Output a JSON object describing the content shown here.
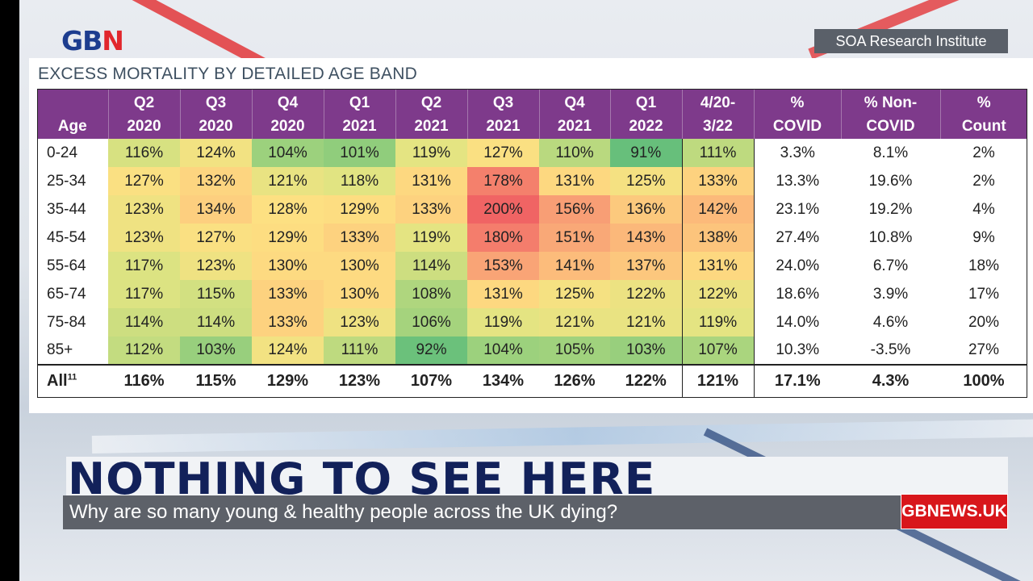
{
  "brand": {
    "logo_main": "GB",
    "logo_accent": "N",
    "colors": {
      "navy": "#1d3d8f",
      "red": "#e1262c",
      "purple": "#7e3a8b"
    }
  },
  "source": "SOA Research Institute",
  "table": {
    "title": "EXCESS MORTALITY BY DETAILED AGE BAND",
    "headers": [
      [
        "",
        "Age"
      ],
      [
        "Q2",
        "2020"
      ],
      [
        "Q3",
        "2020"
      ],
      [
        "Q4",
        "2020"
      ],
      [
        "Q1",
        "2021"
      ],
      [
        "Q2",
        "2021"
      ],
      [
        "Q3",
        "2021"
      ],
      [
        "Q4",
        "2021"
      ],
      [
        "Q1",
        "2022"
      ],
      [
        "4/20-",
        "3/22"
      ],
      [
        "%",
        "COVID"
      ],
      [
        "% Non-",
        "COVID"
      ],
      [
        "%",
        "Count"
      ]
    ],
    "rows": [
      {
        "age": "0-24",
        "q": [
          "116%",
          "124%",
          "104%",
          "101%",
          "119%",
          "127%",
          "110%",
          "91%"
        ],
        "total": "111%",
        "covid": "3.3%",
        "noncovid": "8.1%",
        "count": "2%"
      },
      {
        "age": "25-34",
        "q": [
          "127%",
          "132%",
          "121%",
          "118%",
          "131%",
          "178%",
          "131%",
          "125%"
        ],
        "total": "133%",
        "covid": "13.3%",
        "noncovid": "19.6%",
        "count": "2%"
      },
      {
        "age": "35-44",
        "q": [
          "123%",
          "134%",
          "128%",
          "129%",
          "133%",
          "200%",
          "156%",
          "136%"
        ],
        "total": "142%",
        "covid": "23.1%",
        "noncovid": "19.2%",
        "count": "4%"
      },
      {
        "age": "45-54",
        "q": [
          "123%",
          "127%",
          "129%",
          "133%",
          "119%",
          "180%",
          "151%",
          "143%"
        ],
        "total": "138%",
        "covid": "27.4%",
        "noncovid": "10.8%",
        "count": "9%"
      },
      {
        "age": "55-64",
        "q": [
          "117%",
          "123%",
          "130%",
          "130%",
          "114%",
          "153%",
          "141%",
          "137%"
        ],
        "total": "131%",
        "covid": "24.0%",
        "noncovid": "6.7%",
        "count": "18%"
      },
      {
        "age": "65-74",
        "q": [
          "117%",
          "115%",
          "133%",
          "130%",
          "108%",
          "131%",
          "125%",
          "122%"
        ],
        "total": "122%",
        "covid": "18.6%",
        "noncovid": "3.9%",
        "count": "17%"
      },
      {
        "age": "75-84",
        "q": [
          "114%",
          "114%",
          "133%",
          "123%",
          "106%",
          "119%",
          "121%",
          "121%"
        ],
        "total": "119%",
        "covid": "14.0%",
        "noncovid": "4.6%",
        "count": "20%"
      },
      {
        "age": "85+",
        "q": [
          "112%",
          "103%",
          "124%",
          "111%",
          "92%",
          "104%",
          "105%",
          "103%"
        ],
        "total": "107%",
        "covid": "10.3%",
        "noncovid": "-3.5%",
        "count": "27%"
      }
    ],
    "all_row": {
      "age": "All",
      "age_sup": "11",
      "q": [
        "116%",
        "115%",
        "129%",
        "123%",
        "107%",
        "134%",
        "126%",
        "122%"
      ],
      "total": "121%",
      "covid": "17.1%",
      "noncovid": "4.3%",
      "count": "100%"
    }
  },
  "headline": "NOTHING TO SEE HERE",
  "ticker": "Why are so many young & healthy people across the UK dying?",
  "ticker_brand": "GBNEWS.UK"
}
